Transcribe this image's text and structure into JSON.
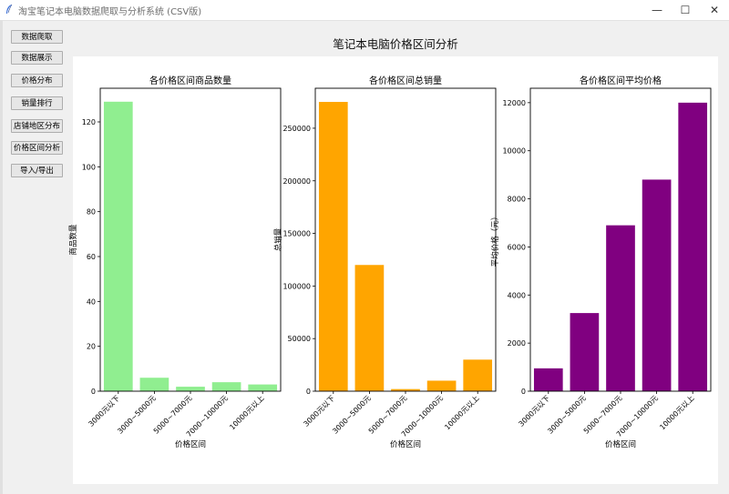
{
  "window": {
    "title": "淘宝笔记本电脑数据爬取与分析系统 (CSV版)",
    "controls": {
      "minimize": "—",
      "maximize": "☐",
      "close": "✕"
    }
  },
  "sidebar": {
    "buttons": [
      {
        "label": "数据爬取"
      },
      {
        "label": "数据展示"
      },
      {
        "label": "价格分布"
      },
      {
        "label": "销量排行"
      },
      {
        "label": "店铺地区分布"
      },
      {
        "label": "价格区间分析"
      },
      {
        "label": "导入/导出"
      }
    ]
  },
  "figure": {
    "suptitle": "笔记本电脑价格区间分析"
  },
  "chart_data": [
    {
      "type": "bar",
      "title": "各价格区间商品数量",
      "xlabel": "价格区间",
      "ylabel": "商品数量",
      "categories": [
        "3000元以下",
        "3000~5000元",
        "5000~7000元",
        "7000~10000元",
        "10000元以上"
      ],
      "values": [
        129,
        6,
        2,
        4,
        3
      ],
      "ylim": [
        0,
        135
      ],
      "yticks": [
        0,
        20,
        40,
        60,
        80,
        100,
        120
      ],
      "color": "#90ee90"
    },
    {
      "type": "bar",
      "title": "各价格区间总销量",
      "xlabel": "价格区间",
      "ylabel": "总销量",
      "categories": [
        "3000元以下",
        "3000~5000元",
        "5000~7000元",
        "7000~10000元",
        "10000元以上"
      ],
      "values": [
        275000,
        120000,
        2000,
        10000,
        30000
      ],
      "ylim": [
        0,
        288000
      ],
      "yticks": [
        0,
        50000,
        100000,
        150000,
        200000,
        250000
      ],
      "color": "#ffa500"
    },
    {
      "type": "bar",
      "title": "各价格区间平均价格",
      "xlabel": "价格区间",
      "ylabel": "平均价格（元）",
      "categories": [
        "3000元以下",
        "3000~5000元",
        "5000~7000元",
        "7000~10000元",
        "10000元以上"
      ],
      "values": [
        950,
        3250,
        6900,
        8800,
        12000
      ],
      "ylim": [
        0,
        12600
      ],
      "yticks": [
        0,
        2000,
        4000,
        6000,
        8000,
        10000,
        12000
      ],
      "color": "#800080"
    }
  ]
}
